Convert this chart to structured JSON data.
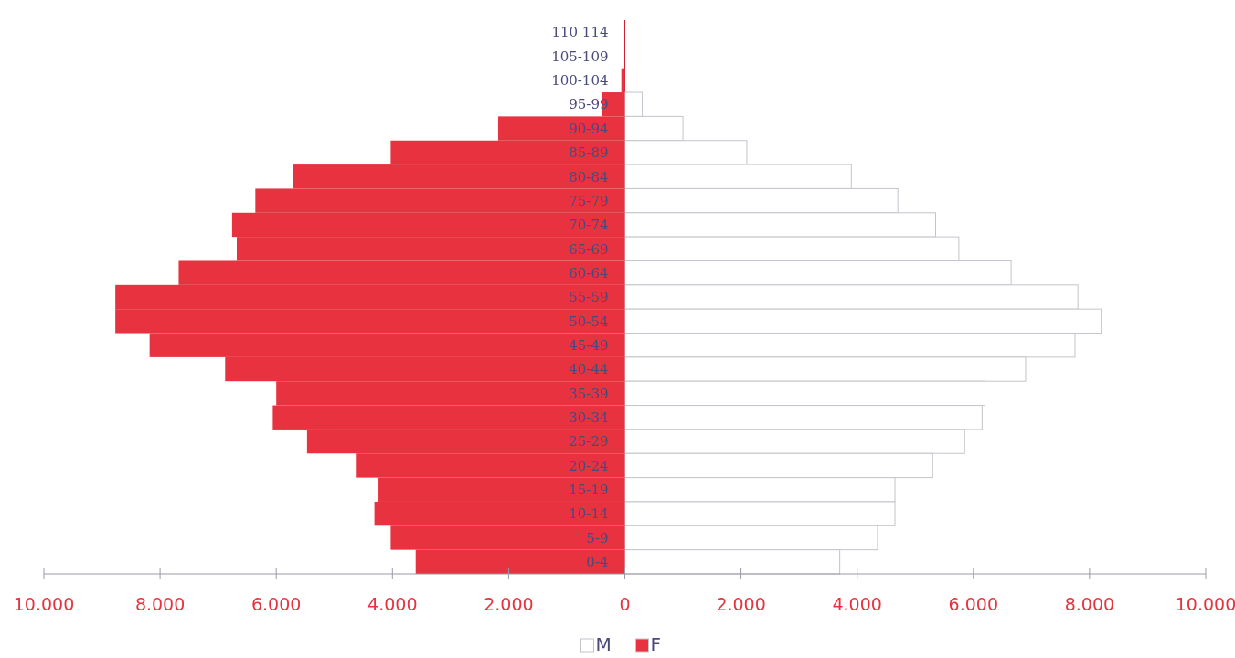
{
  "chart_data": {
    "type": "bar",
    "orientation": "horizontal",
    "categories": [
      "110 114",
      "105-109",
      "100-104",
      "95-99",
      "90-94",
      "85-89",
      "80-84",
      "75-79",
      "70-74",
      "65-69",
      "60-64",
      "55-59",
      "50-54",
      "45-49",
      "40-44",
      "35-39",
      "30-34",
      "25-29",
      "20-24",
      "15-19",
      "10-14",
      "5-9",
      "0-4"
    ],
    "series": [
      {
        "name": "M",
        "color": "#ffffff",
        "values": [
          null,
          null,
          null,
          300,
          1000,
          2100,
          3900,
          4700,
          5350,
          5750,
          6650,
          7800,
          8200,
          7750,
          6900,
          6200,
          6150,
          5850,
          5300,
          4650,
          4650,
          4350,
          3700
        ]
      },
      {
        "name": "F",
        "color": "#e8323f",
        "values": [
          0,
          0,
          -60,
          -400,
          -2180,
          -4030,
          -5720,
          -6360,
          -6760,
          -6680,
          -7680,
          -8770,
          -8770,
          -8180,
          -6880,
          -6000,
          -6060,
          -5470,
          -4630,
          -4240,
          -4310,
          -4030,
          -3600
        ]
      }
    ],
    "xlim": [
      -10000,
      10000
    ],
    "xticks": [
      {
        "value": -10000,
        "label": "10.000"
      },
      {
        "value": -8000,
        "label": "8.000"
      },
      {
        "value": -6000,
        "label": "6.000"
      },
      {
        "value": -4000,
        "label": "4.000"
      },
      {
        "value": -2000,
        "label": "2.000"
      },
      0,
      {
        "value": 2000,
        "label": "2.000"
      },
      {
        "value": 4000,
        "label": "4.000"
      },
      {
        "value": 6000,
        "label": "6.000"
      },
      {
        "value": 8000,
        "label": "8.000"
      },
      {
        "value": 10000,
        "label": "10.000"
      }
    ],
    "legend": "bottom",
    "stacked": true
  }
}
